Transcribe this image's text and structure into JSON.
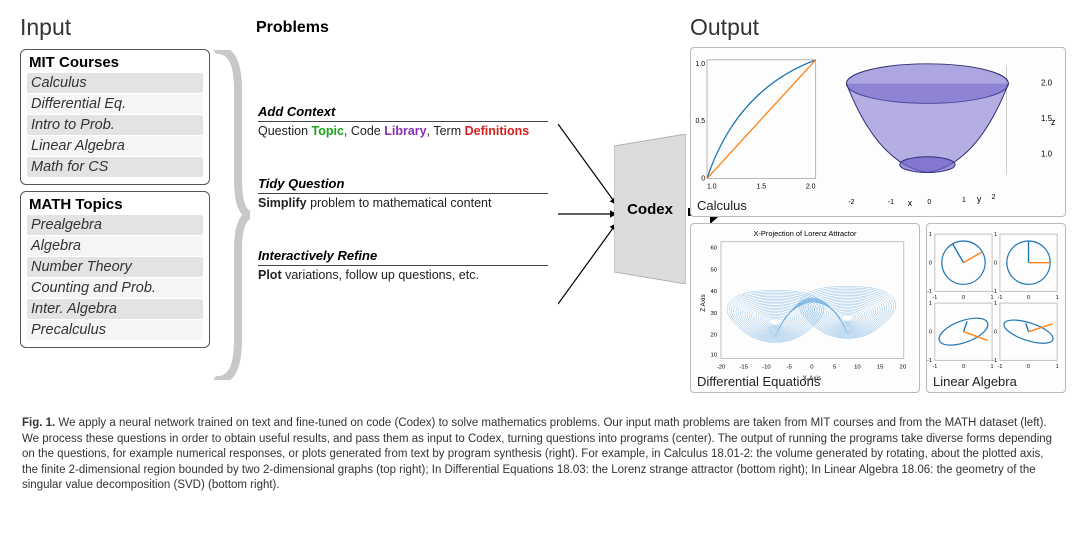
{
  "headings": {
    "input": "Input",
    "output": "Output",
    "problems": "Problems"
  },
  "panels": {
    "mit": {
      "title": "MIT Courses",
      "items": [
        "Calculus",
        "Differential Eq.",
        "Intro to Prob.",
        "Linear Algebra",
        "Math for CS"
      ]
    },
    "math": {
      "title": "MATH Topics",
      "items": [
        "Prealgebra",
        "Algebra",
        "Number Theory",
        "Counting and Prob.",
        "Inter. Algebra",
        "Precalculus"
      ]
    }
  },
  "groups": {
    "add": {
      "title": "Add Context",
      "prefix": "Question ",
      "topic": "Topic",
      "mid1": ", Code ",
      "library": "Library",
      "mid2": ", Term ",
      "defs": "Definitions"
    },
    "tidy": {
      "title": "Tidy Question",
      "bold": "Simplify",
      "rest": " problem to mathematical content"
    },
    "refine": {
      "title": "Interactively Refine",
      "bold": "Plot",
      "rest": " variations, follow up questions, etc."
    }
  },
  "codex": {
    "label": "Codex",
    "fill": "#dcdcdc",
    "stroke": "#b0b0b0"
  },
  "colors": {
    "topic": "#1aa61a",
    "library": "#8a2fb5",
    "defs": "#d62020",
    "arrow": "#000000",
    "brace": "#c8c8c8"
  },
  "output": {
    "calc": {
      "label": "Calculus",
      "curve2d": {
        "xlim": [
          1.0,
          2.0
        ],
        "ylim": [
          0,
          1.0
        ],
        "xticks": [
          1.0,
          1.5,
          2.0
        ],
        "yticks": [
          0,
          0.5,
          1.0
        ],
        "line1_color": "#1f77b4",
        "line2_color": "#ff7f0e"
      },
      "solid3d": {
        "face": "#6e5fc9",
        "edge": "#2f2f6f",
        "opacity": 0.55,
        "xaxis": "x",
        "yaxis": "y",
        "zaxis": "z",
        "zticks": [
          1.0,
          1.5,
          2.0
        ]
      }
    },
    "de": {
      "label": "Differential Equations",
      "title": "X-Projection of Lorenz Attractor",
      "xlabel": "X-Axis",
      "ylabel": "Z Axis",
      "xlim": [
        -20,
        20
      ],
      "ylim": [
        5,
        60
      ],
      "xticks": [
        -20,
        -15,
        -10,
        -5,
        0,
        5,
        10,
        15,
        20
      ],
      "stroke": "#3a8fd4",
      "stroke_width": 0.4
    },
    "la": {
      "label": "Linear Algebra",
      "unit_color": "#1f77b4",
      "vec_color": "#ff7f0e",
      "lim": [
        -1.5,
        1.5
      ],
      "ticks": [
        -1,
        0,
        1
      ]
    }
  },
  "caption": {
    "lead": "Fig. 1.",
    "text": " We apply a neural network trained on text and fine-tuned on code (Codex) to solve mathematics problems. Our input math problems are taken from MIT courses and from the MATH dataset (left). We process these questions in order to obtain useful results, and pass them as input to Codex, turning questions into programs (center). The output of running the programs take diverse forms depending on the questions, for example numerical responses, or plots generated from text by program synthesis (right). For example, in Calculus 18.01-2: the volume generated by rotating, about the plotted axis, the finite 2-dimensional region bounded by two 2-dimensional graphs (top right); In Differential Equations 18.03: the Lorenz strange attractor (bottom right); In Linear Algebra 18.06: the geometry of the singular value decomposition (SVD) (bottom right)."
  }
}
